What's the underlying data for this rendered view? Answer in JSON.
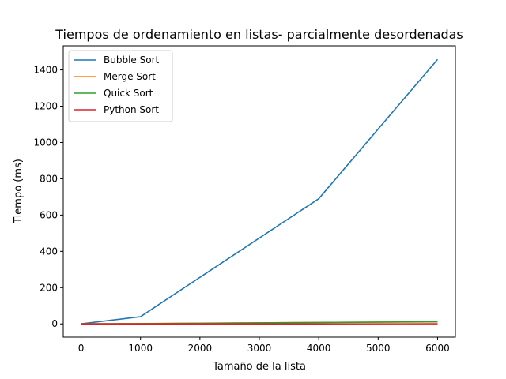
{
  "chart_data": {
    "type": "line",
    "title": "Tiempos de ordenamiento en listas- parcialmente desordenadas",
    "xlabel": "Tamaño de la lista",
    "ylabel": "Tiempo (ms)",
    "xlim": [
      -300,
      6300
    ],
    "ylim": [
      -73,
      1533
    ],
    "x_ticks": [
      0,
      1000,
      2000,
      3000,
      4000,
      5000,
      6000
    ],
    "y_ticks": [
      0,
      200,
      400,
      600,
      800,
      1000,
      1200,
      1400
    ],
    "grid": false,
    "legend_position": "top-left",
    "x": [
      0,
      1000,
      4000,
      6000
    ],
    "series": [
      {
        "name": "Bubble Sort",
        "color": "#1f77b4",
        "values": [
          0,
          40,
          690,
          1458
        ]
      },
      {
        "name": "Merge Sort",
        "color": "#ff7f0e",
        "values": [
          0,
          2,
          8,
          11
        ]
      },
      {
        "name": "Quick Sort",
        "color": "#2ca02c",
        "values": [
          0,
          1.5,
          8,
          12
        ]
      },
      {
        "name": "Python Sort",
        "color": "#d62728",
        "values": [
          0,
          0.1,
          0.3,
          0.5
        ]
      }
    ]
  }
}
